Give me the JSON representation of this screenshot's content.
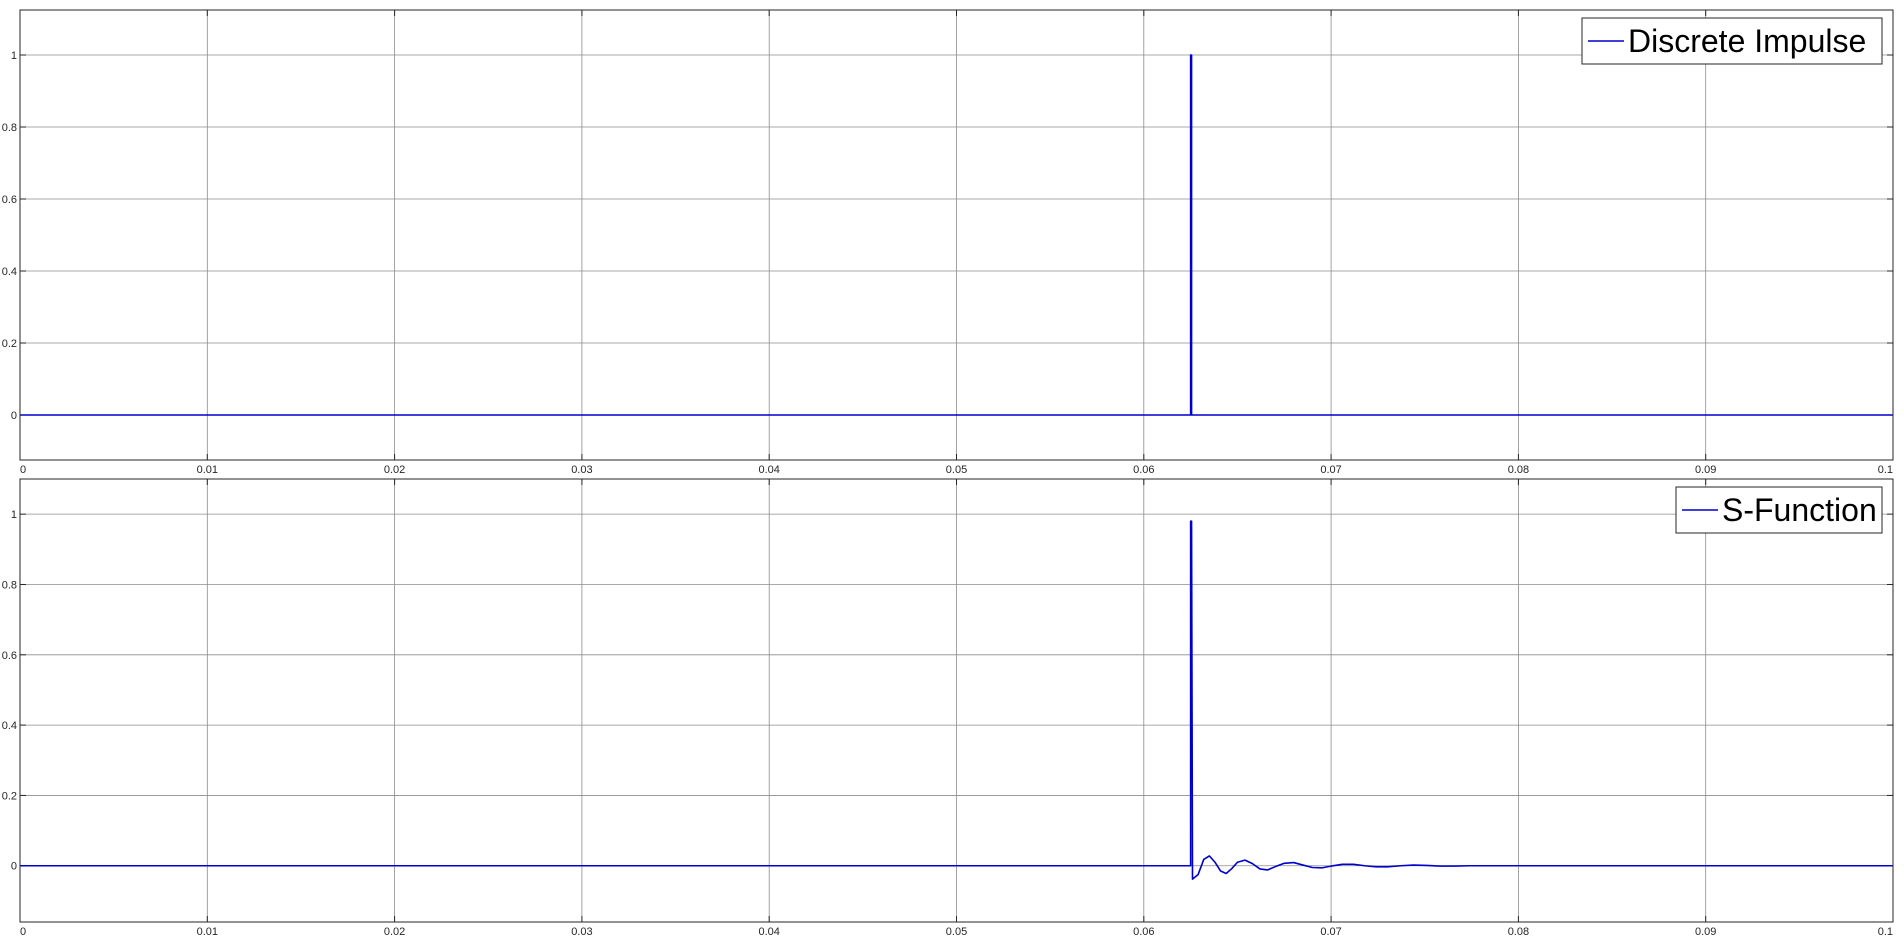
{
  "chart_data": [
    {
      "type": "line",
      "title": "",
      "xlabel": "",
      "ylabel": "",
      "xlim": [
        0,
        0.1
      ],
      "ylim": [
        -0.125,
        1.125
      ],
      "grid": true,
      "legend_position": "top-right",
      "x_ticks": [
        0,
        0.01,
        0.02,
        0.03,
        0.04,
        0.05,
        0.06,
        0.07,
        0.08,
        0.09,
        0.1
      ],
      "x_tick_labels": [
        "0",
        "0.01",
        "0.02",
        "0.03",
        "0.04",
        "0.05",
        "0.06",
        "0.07",
        "0.08",
        "0.09",
        "0.1"
      ],
      "y_ticks": [
        0,
        0.2,
        0.4,
        0.6,
        0.8,
        1
      ],
      "y_tick_labels": [
        "0",
        "0.2",
        "0.4",
        "0.6",
        "0.8",
        "1"
      ],
      "series": [
        {
          "name": "Discrete  Impulse",
          "color": "#0000cc",
          "x": [
            0,
            0.0625,
            0.0625,
            0.06255,
            0.06255,
            0.1
          ],
          "y": [
            0,
            0,
            1,
            1,
            0,
            0
          ]
        }
      ]
    },
    {
      "type": "line",
      "title": "",
      "xlabel": "",
      "ylabel": "",
      "xlim": [
        0,
        0.1
      ],
      "ylim": [
        -0.16,
        1.1
      ],
      "grid": true,
      "legend_position": "top-right",
      "x_ticks": [
        0,
        0.01,
        0.02,
        0.03,
        0.04,
        0.05,
        0.06,
        0.07,
        0.08,
        0.09,
        0.1
      ],
      "x_tick_labels": [
        "0",
        "0.01",
        "0.02",
        "0.03",
        "0.04",
        "0.05",
        "0.06",
        "0.07",
        "0.08",
        "0.09",
        "0.1"
      ],
      "y_ticks": [
        0,
        0.2,
        0.4,
        0.6,
        0.8,
        1
      ],
      "y_tick_labels": [
        "0",
        "0.2",
        "0.4",
        "0.6",
        "0.8",
        "1"
      ],
      "series": [
        {
          "name": "S-Function",
          "color": "#0000cc",
          "x": [
            0,
            0.0625,
            0.0625,
            0.06255,
            0.0626,
            0.0629,
            0.0632,
            0.0635,
            0.0638,
            0.0641,
            0.0644,
            0.0647,
            0.065,
            0.0654,
            0.0658,
            0.0662,
            0.0666,
            0.067,
            0.0675,
            0.068,
            0.0685,
            0.069,
            0.0695,
            0.07,
            0.0706,
            0.0712,
            0.0718,
            0.0724,
            0.073,
            0.0737,
            0.0744,
            0.0751,
            0.0758,
            0.0766,
            0.0774,
            0.1
          ],
          "y": [
            0,
            0,
            0.98,
            0.98,
            -0.038,
            -0.025,
            0.018,
            0.028,
            0.01,
            -0.015,
            -0.022,
            -0.008,
            0.01,
            0.016,
            0.006,
            -0.009,
            -0.012,
            -0.003,
            0.007,
            0.009,
            0.002,
            -0.005,
            -0.006,
            -0.001,
            0.004,
            0.004,
            0.0,
            -0.003,
            -0.003,
            0.0,
            0.002,
            0.001,
            -0.001,
            -0.001,
            0.0,
            0
          ]
        }
      ]
    }
  ]
}
